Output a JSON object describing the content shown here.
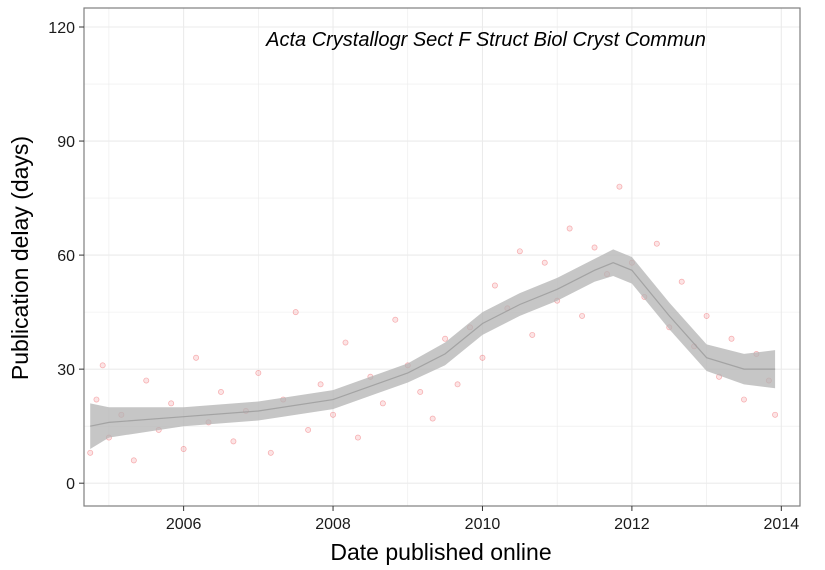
{
  "chart_data": {
    "type": "scatter",
    "title": "Acta Crystallogr Sect F Struct Biol Cryst Commun",
    "xlabel": "Date published online",
    "ylabel": "Publication delay (days)",
    "x_ticks": [
      "2006",
      "2008",
      "2010",
      "2012",
      "2014"
    ],
    "y_ticks": [
      "0",
      "30",
      "60",
      "90",
      "120"
    ],
    "xlim": [
      "2004-09-01",
      "2014-04-01"
    ],
    "ylim": [
      -6,
      125
    ],
    "grid": true,
    "legend": "none",
    "colors": {
      "points": "#e8242a",
      "smooth": "#b3b3b3",
      "panel_border": "#7f7f7f",
      "grid": "#ebebeb"
    },
    "series": [
      {
        "kind": "points",
        "values": [
          [
            "2004-10",
            8
          ],
          [
            "2004-11",
            22
          ],
          [
            "2004-12",
            31
          ],
          [
            "2005-01",
            12
          ],
          [
            "2005-03",
            18
          ],
          [
            "2005-05",
            6
          ],
          [
            "2005-07",
            27
          ],
          [
            "2005-09",
            14
          ],
          [
            "2005-11",
            21
          ],
          [
            "2006-01",
            9
          ],
          [
            "2006-03",
            33
          ],
          [
            "2006-05",
            16
          ],
          [
            "2006-07",
            24
          ],
          [
            "2006-09",
            11
          ],
          [
            "2006-11",
            19
          ],
          [
            "2007-01",
            29
          ],
          [
            "2007-03",
            8
          ],
          [
            "2007-05",
            22
          ],
          [
            "2007-07",
            45
          ],
          [
            "2007-09",
            14
          ],
          [
            "2007-11",
            26
          ],
          [
            "2008-01",
            18
          ],
          [
            "2008-03",
            37
          ],
          [
            "2008-05",
            12
          ],
          [
            "2008-07",
            28
          ],
          [
            "2008-09",
            21
          ],
          [
            "2008-11",
            43
          ],
          [
            "2009-01",
            31
          ],
          [
            "2009-03",
            24
          ],
          [
            "2009-05",
            17
          ],
          [
            "2009-07",
            38
          ],
          [
            "2009-09",
            26
          ],
          [
            "2009-11",
            41
          ],
          [
            "2010-01",
            33
          ],
          [
            "2010-03",
            52
          ],
          [
            "2010-05",
            46
          ],
          [
            "2010-07",
            61
          ],
          [
            "2010-09",
            39
          ],
          [
            "2010-11",
            58
          ],
          [
            "2011-01",
            48
          ],
          [
            "2011-03",
            67
          ],
          [
            "2011-05",
            44
          ],
          [
            "2011-07",
            62
          ],
          [
            "2011-09",
            55
          ],
          [
            "2011-11",
            78
          ],
          [
            "2012-01",
            58
          ],
          [
            "2012-03",
            49
          ],
          [
            "2012-05",
            63
          ],
          [
            "2012-07",
            41
          ],
          [
            "2012-09",
            53
          ],
          [
            "2012-11",
            36
          ],
          [
            "2013-01",
            44
          ],
          [
            "2013-03",
            28
          ],
          [
            "2013-05",
            38
          ],
          [
            "2013-07",
            22
          ],
          [
            "2013-09",
            34
          ],
          [
            "2013-11",
            27
          ],
          [
            "2013-12",
            18
          ]
        ]
      },
      {
        "kind": "smooth",
        "values": [
          [
            "2004-10",
            15
          ],
          [
            "2005-01",
            16
          ],
          [
            "2006-01",
            17.5
          ],
          [
            "2007-01",
            19
          ],
          [
            "2008-01",
            22
          ],
          [
            "2009-01",
            29
          ],
          [
            "2009-07",
            34
          ],
          [
            "2010-01",
            42
          ],
          [
            "2010-07",
            47
          ],
          [
            "2011-01",
            51
          ],
          [
            "2011-07",
            56
          ],
          [
            "2011-10",
            58
          ],
          [
            "2012-01",
            56
          ],
          [
            "2012-07",
            44
          ],
          [
            "2013-01",
            33
          ],
          [
            "2013-07",
            30
          ],
          [
            "2013-12",
            30
          ]
        ],
        "ci_width": [
          6,
          4,
          2.5,
          2.5,
          2.5,
          2.5,
          3,
          3,
          3,
          3,
          3,
          3.5,
          3.5,
          3.5,
          3.5,
          4,
          5
        ]
      }
    ]
  }
}
